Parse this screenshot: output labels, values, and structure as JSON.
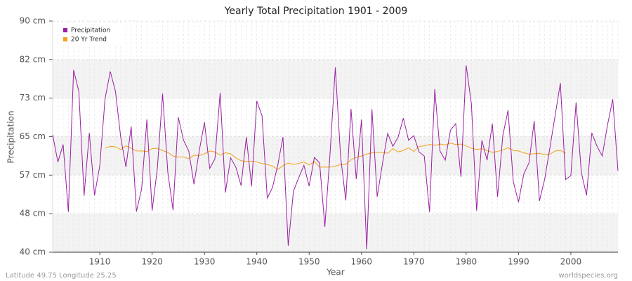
{
  "chart_data": {
    "type": "line",
    "title": "Yearly Total Precipitation 1901 - 2009",
    "x_label": "Year",
    "y_label": "Precipitation",
    "footer_left": "Latitude 49.75 Longitude 25.25",
    "footer_right": "worldspecies.org",
    "x": [
      1901,
      1902,
      1903,
      1904,
      1905,
      1906,
      1907,
      1908,
      1909,
      1910,
      1911,
      1912,
      1913,
      1914,
      1915,
      1916,
      1917,
      1918,
      1919,
      1920,
      1921,
      1922,
      1923,
      1924,
      1925,
      1926,
      1927,
      1928,
      1929,
      1930,
      1931,
      1932,
      1933,
      1934,
      1935,
      1936,
      1937,
      1938,
      1939,
      1940,
      1941,
      1942,
      1943,
      1944,
      1945,
      1946,
      1947,
      1948,
      1949,
      1950,
      1951,
      1952,
      1953,
      1954,
      1955,
      1956,
      1957,
      1958,
      1959,
      1960,
      1961,
      1962,
      1963,
      1964,
      1965,
      1966,
      1967,
      1968,
      1969,
      1970,
      1971,
      1972,
      1973,
      1974,
      1975,
      1976,
      1977,
      1978,
      1979,
      1980,
      1981,
      1982,
      1983,
      1984,
      1985,
      1986,
      1987,
      1988,
      1989,
      1990,
      1991,
      1992,
      1993,
      1994,
      1995,
      1996,
      1997,
      1998,
      1999,
      2000,
      2001,
      2002,
      2003,
      2004,
      2005,
      2006,
      2007,
      2008,
      2009
    ],
    "series": [
      {
        "name": "Precipitation",
        "color": "#9b1fa3",
        "values": [
          65.4,
          59.5,
          63.3,
          48.7,
          79.4,
          74.8,
          52.2,
          65.8,
          52.3,
          58.7,
          73.1,
          79.1,
          74.8,
          64.9,
          58.4,
          67.2,
          48.8,
          53.7,
          68.7,
          49.0,
          58.1,
          74.3,
          57.3,
          49.1,
          69.2,
          64.2,
          61.9,
          54.7,
          61.9,
          68.1,
          58.1,
          60.2,
          74.5,
          52.9,
          60.4,
          58.4,
          54.4,
          64.9,
          54.3,
          72.7,
          69.5,
          51.7,
          54.0,
          58.8,
          64.9,
          41.4,
          53.2,
          56.1,
          58.8,
          54.3,
          60.5,
          59.3,
          45.5,
          61.4,
          80.0,
          60.8,
          51.2,
          71.0,
          55.8,
          68.7,
          40.6,
          70.9,
          52.0,
          59.1,
          65.7,
          62.9,
          64.9,
          69.0,
          64.2,
          65.2,
          61.7,
          60.8,
          48.7,
          75.3,
          61.9,
          59.9,
          66.4,
          67.8,
          56.3,
          80.4,
          72.1,
          49.0,
          64.2,
          59.9,
          67.8,
          52.0,
          65.2,
          70.7,
          55.3,
          50.8,
          56.9,
          59.3,
          68.4,
          51.1,
          55.8,
          62.6,
          69.6,
          76.6,
          55.7,
          56.6,
          72.4,
          57.3,
          52.3,
          65.8,
          62.9,
          60.8,
          67.5,
          73.1,
          57.6
        ]
      },
      {
        "name": "20 Yr Trend",
        "color": "#f5a01a",
        "values": [
          null,
          null,
          null,
          null,
          null,
          null,
          null,
          null,
          null,
          null,
          62.5,
          62.9,
          62.8,
          62.2,
          63.0,
          62.5,
          61.9,
          61.9,
          61.8,
          62.4,
          62.5,
          62.0,
          61.6,
          60.8,
          60.6,
          60.6,
          60.2,
          61.0,
          60.9,
          61.3,
          61.9,
          61.7,
          61.0,
          61.5,
          61.3,
          60.4,
          59.8,
          59.6,
          59.7,
          59.5,
          59.2,
          59.0,
          58.6,
          57.9,
          58.7,
          59.3,
          59.0,
          59.2,
          59.5,
          58.9,
          59.6,
          58.4,
          58.4,
          58.4,
          58.6,
          59.0,
          59.0,
          60.0,
          60.5,
          60.8,
          61.2,
          61.5,
          61.6,
          61.6,
          61.4,
          62.4,
          61.7,
          62.0,
          62.6,
          61.8,
          62.9,
          63.0,
          63.3,
          63.1,
          63.4,
          63.2,
          63.6,
          63.3,
          63.4,
          63.0,
          62.5,
          62.2,
          62.4,
          62.0,
          61.6,
          61.8,
          62.1,
          62.6,
          62.0,
          61.9,
          61.5,
          61.2,
          61.3,
          61.4,
          61.1,
          61.2,
          61.9,
          62.0,
          61.4,
          null,
          null,
          null,
          null,
          null,
          null,
          null,
          null,
          null,
          null
        ]
      }
    ],
    "xlim": [
      1901,
      2009
    ],
    "xticks": [
      1910,
      1920,
      1930,
      1940,
      1950,
      1960,
      1970,
      1980,
      1990,
      2000
    ],
    "ylim": [
      40,
      90
    ],
    "yticks": [
      {
        "value": 40,
        "label": "40 cm"
      },
      {
        "value": 48.33,
        "label": "48 cm"
      },
      {
        "value": 56.67,
        "label": "57 cm"
      },
      {
        "value": 65,
        "label": "65 cm"
      },
      {
        "value": 73.33,
        "label": "73 cm"
      },
      {
        "value": 81.67,
        "label": "82 cm"
      },
      {
        "value": 90,
        "label": "90 cm"
      }
    ],
    "grid": true,
    "legend_position": "top-left"
  }
}
